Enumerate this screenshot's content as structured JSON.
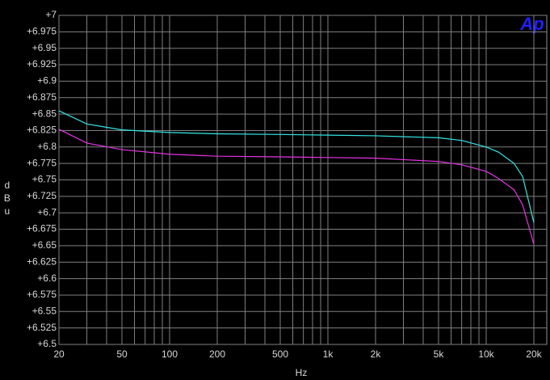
{
  "chart_data": {
    "type": "line",
    "logo": "Ap",
    "xlabel": "Hz",
    "ylabel": "dBu",
    "x": [
      20,
      30,
      50,
      100,
      200,
      500,
      1000,
      2000,
      5000,
      7000,
      10000,
      12000,
      15000,
      17000,
      20000
    ],
    "series": [
      {
        "color": "#33e6e6",
        "values": [
          6.855,
          6.835,
          6.826,
          6.822,
          6.82,
          6.819,
          6.818,
          6.817,
          6.814,
          6.81,
          6.8,
          6.792,
          6.775,
          6.755,
          6.685
        ]
      },
      {
        "color": "#e633e6",
        "values": [
          6.827,
          6.806,
          6.796,
          6.789,
          6.786,
          6.785,
          6.784,
          6.783,
          6.778,
          6.773,
          6.763,
          6.752,
          6.735,
          6.712,
          6.652
        ]
      }
    ],
    "xscale": "log",
    "xlim": [
      20,
      20000
    ],
    "xticks": [
      20,
      50,
      100,
      200,
      500,
      {
        "value": 1000,
        "label": "1k"
      },
      {
        "value": 2000,
        "label": "2k"
      },
      {
        "value": 5000,
        "label": "5k"
      },
      {
        "value": 10000,
        "label": "10k"
      },
      {
        "value": 20000,
        "label": "20k"
      }
    ],
    "xminor": [
      30,
      40,
      60,
      70,
      80,
      90,
      300,
      400,
      600,
      700,
      800,
      900,
      3000,
      4000,
      6000,
      7000,
      8000,
      9000
    ],
    "ylim": [
      6.5,
      7
    ],
    "yticks": [
      {
        "value": 6.5,
        "label": "+6.5"
      },
      {
        "value": 6.525,
        "label": "+6.525"
      },
      {
        "value": 6.55,
        "label": "+6.55"
      },
      {
        "value": 6.575,
        "label": "+6.575"
      },
      {
        "value": 6.6,
        "label": "+6.6"
      },
      {
        "value": 6.625,
        "label": "+6.625"
      },
      {
        "value": 6.65,
        "label": "+6.65"
      },
      {
        "value": 6.675,
        "label": "+6.675"
      },
      {
        "value": 6.7,
        "label": "+6.7"
      },
      {
        "value": 6.725,
        "label": "+6.725"
      },
      {
        "value": 6.75,
        "label": "+6.75"
      },
      {
        "value": 6.775,
        "label": "+6.775"
      },
      {
        "value": 6.8,
        "label": "+6.8"
      },
      {
        "value": 6.825,
        "label": "+6.825"
      },
      {
        "value": 6.85,
        "label": "+6.85"
      },
      {
        "value": 6.875,
        "label": "+6.875"
      },
      {
        "value": 6.9,
        "label": "+6.9"
      },
      {
        "value": 6.925,
        "label": "+6.925"
      },
      {
        "value": 6.95,
        "label": "+6.95"
      },
      {
        "value": 6.975,
        "label": "+6.975"
      },
      {
        "value": 7,
        "label": "+7"
      }
    ],
    "grid": true
  }
}
